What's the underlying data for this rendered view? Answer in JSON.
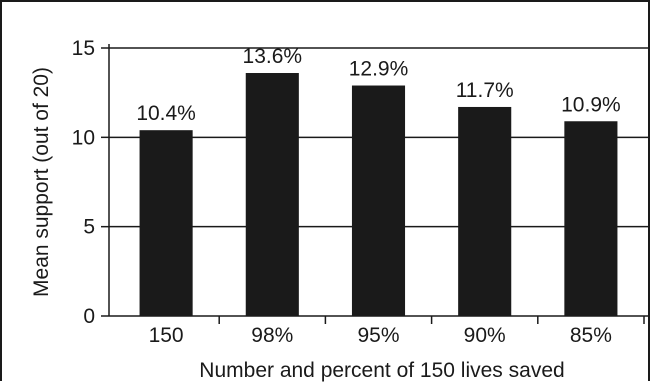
{
  "chart_data": {
    "type": "bar",
    "categories": [
      "150",
      "98%",
      "95%",
      "90%",
      "85%"
    ],
    "values": [
      10.4,
      13.6,
      12.9,
      11.7,
      10.9
    ],
    "data_labels": [
      "10.4%",
      "13.6%",
      "12.9%",
      "11.7%",
      "10.9%"
    ],
    "xlabel": "Number and percent of 150 lives saved",
    "ylabel": "Mean support (out of 20)",
    "ylim": [
      0,
      15
    ],
    "yticks": [
      0,
      5,
      10,
      15
    ],
    "grid": "horizontal",
    "colors": {
      "bar": "#1a1a1a",
      "grid": "#1a1a1a",
      "text": "#1a1a1a"
    }
  }
}
